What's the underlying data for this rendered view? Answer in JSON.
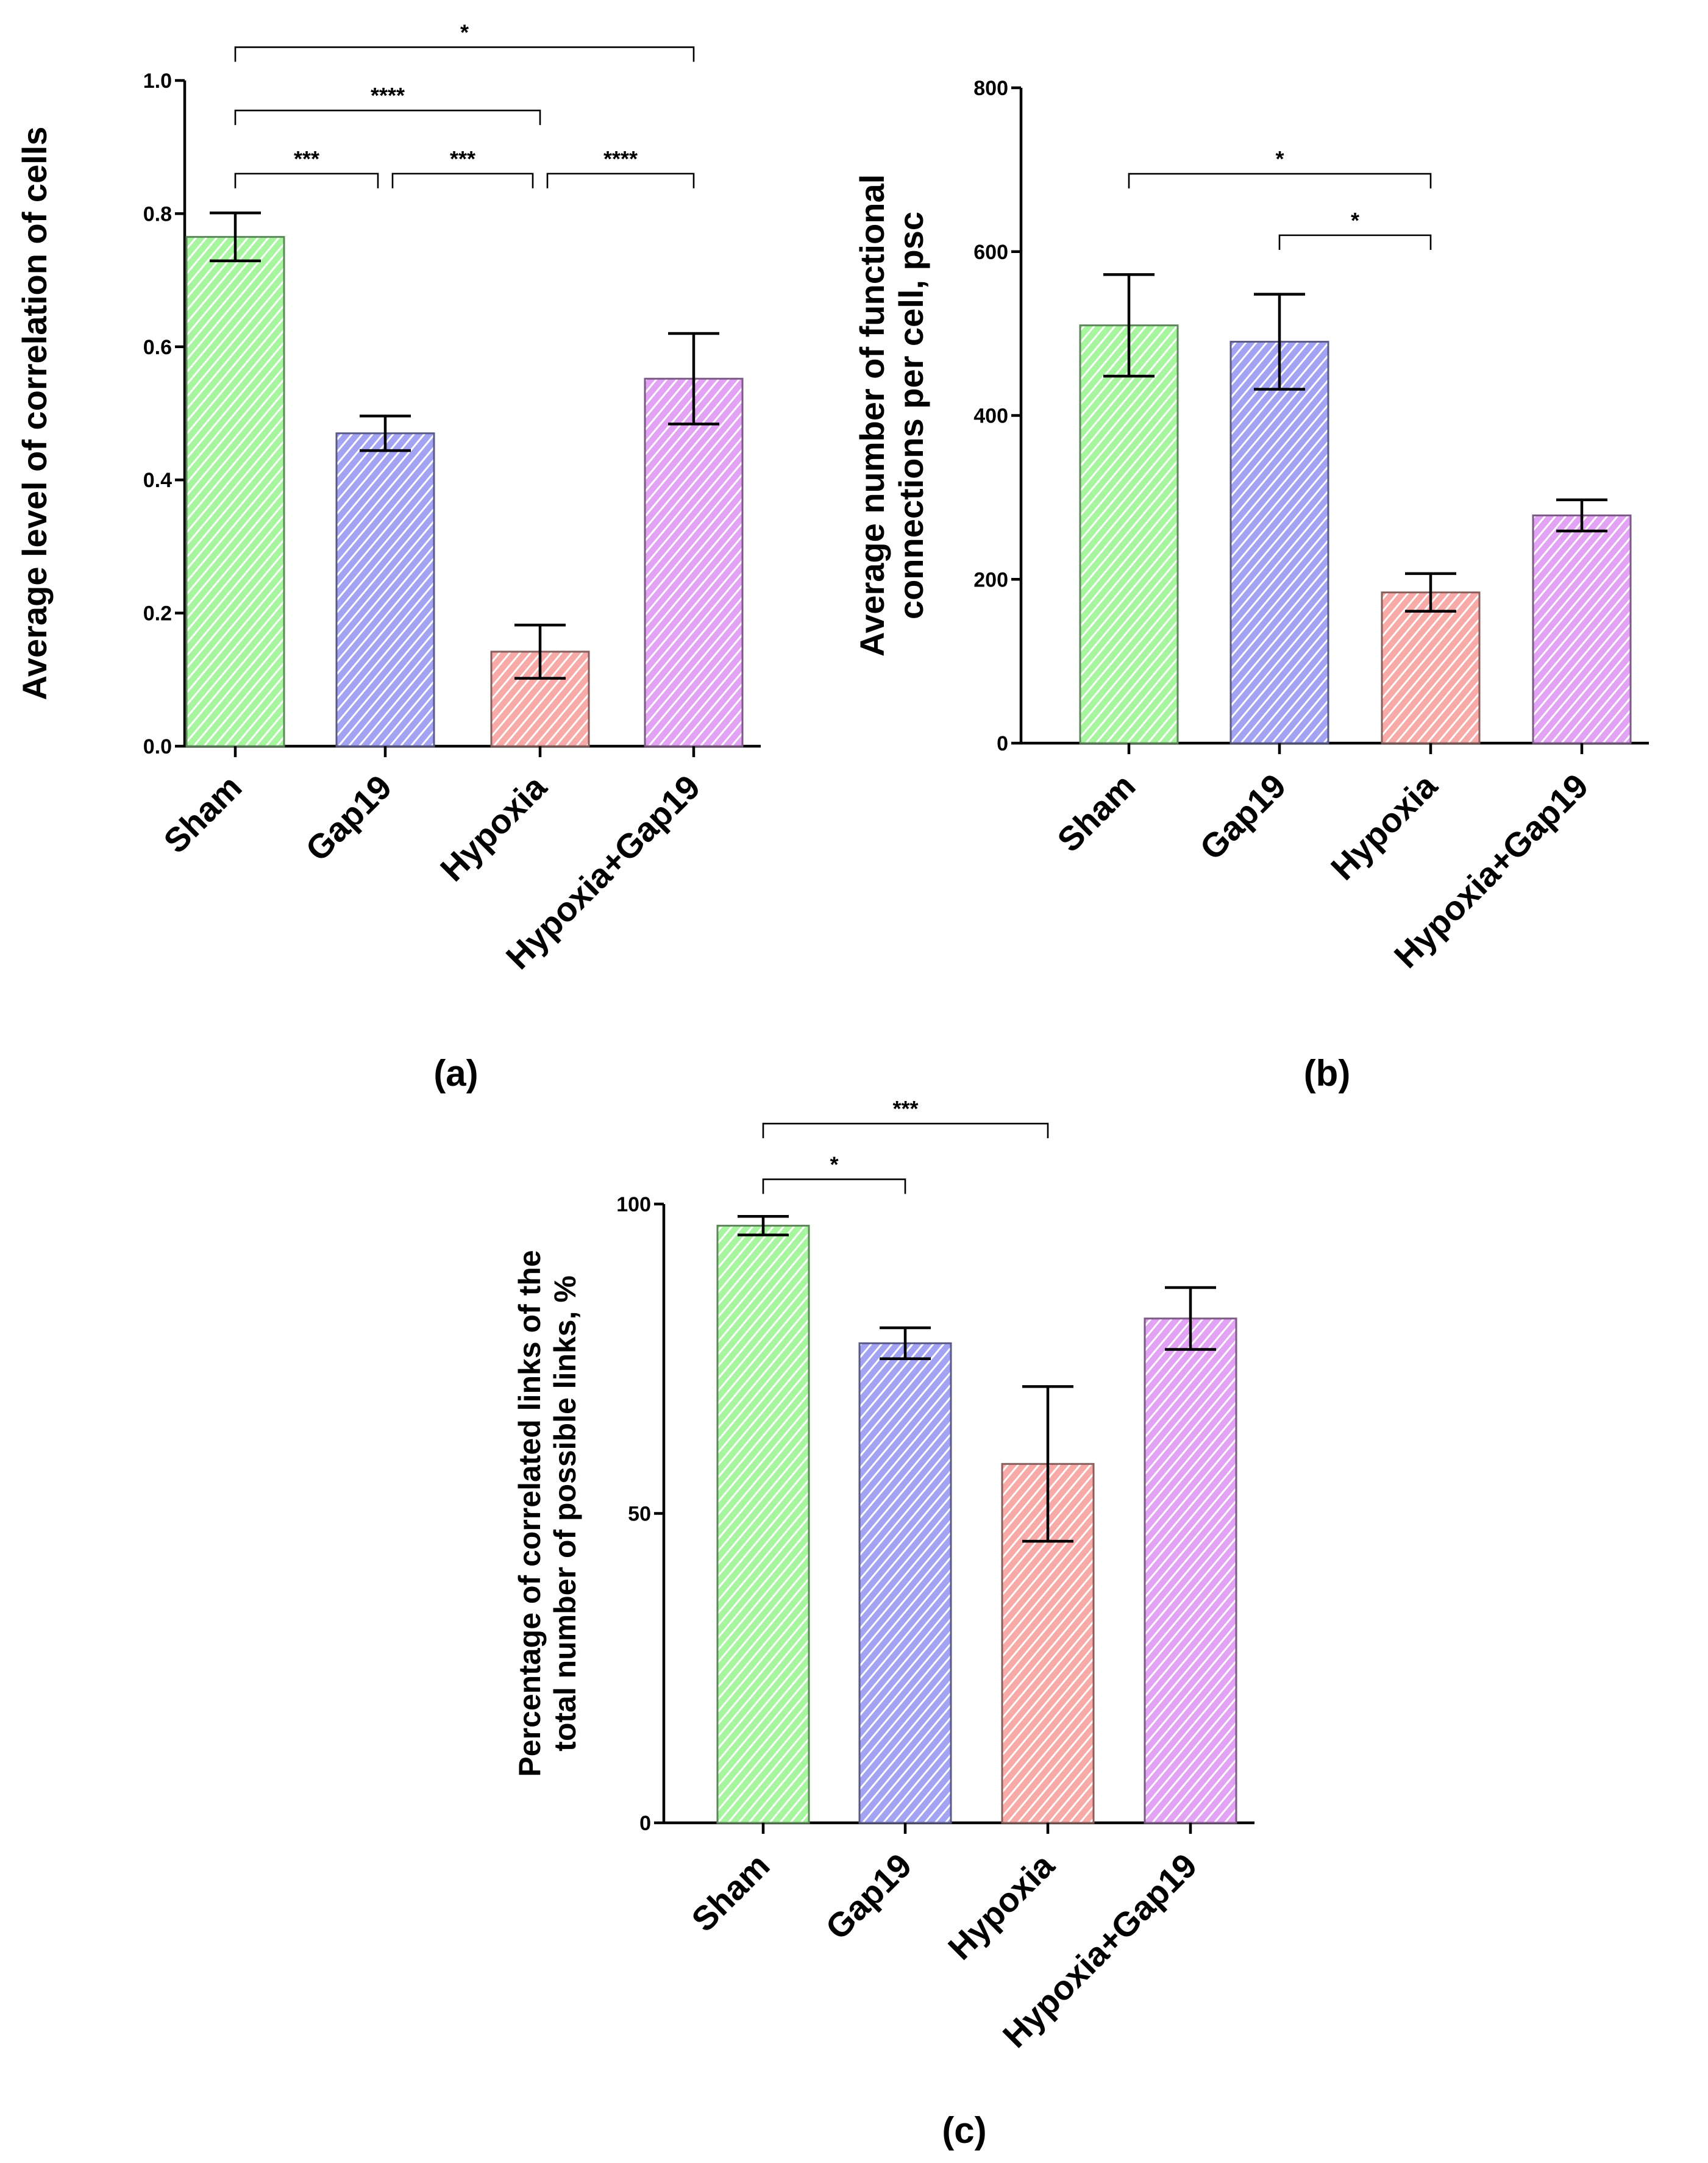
{
  "colors": {
    "Sham": "#a8f5a0",
    "Gap19": "#a3a3f4",
    "Hypoxia": "#f7aaa8",
    "Hypoxia+Gap19": "#e3a3f4"
  },
  "chart_data": [
    {
      "type": "bar",
      "panel": "(a)",
      "categories": [
        "Sham",
        "Gap19",
        "Hypoxia",
        "Hypoxia+Gap19"
      ],
      "values": [
        0.765,
        0.47,
        0.142,
        0.552
      ],
      "errors": [
        0.036,
        0.026,
        0.04,
        0.068
      ],
      "ylabel": [
        "Average level of correlation of cells"
      ],
      "ylim": [
        0,
        1.0
      ],
      "yticks": [
        0,
        0.2,
        0.4,
        0.6,
        0.8,
        1.0
      ],
      "ytick_labels": [
        "0.0",
        "0.2",
        "0.4",
        "0.6",
        "0.8",
        "1.0"
      ],
      "significance": [
        {
          "from": 0,
          "to": 1,
          "label": "***",
          "level": 0.86
        },
        {
          "from": 1,
          "to": 2,
          "label": "***",
          "level": 0.86
        },
        {
          "from": 2,
          "to": 3,
          "label": "****",
          "level": 0.86
        },
        {
          "from": 0,
          "to": 2,
          "label": "****",
          "level": 0.955
        },
        {
          "from": 0,
          "to": 3,
          "label": "*",
          "level": 1.05
        }
      ]
    },
    {
      "type": "bar",
      "panel": "(b)",
      "categories": [
        "Sham",
        "Gap19",
        "Hypoxia",
        "Hypoxia+Gap19"
      ],
      "values": [
        510,
        490,
        184,
        278
      ],
      "errors": [
        62,
        58,
        23,
        19
      ],
      "ylabel": [
        "Average number of functional",
        "connections per cell, psc"
      ],
      "ylim": [
        0,
        800
      ],
      "yticks": [
        0,
        200,
        400,
        600,
        800
      ],
      "ytick_labels": [
        "0",
        "200",
        "400",
        "600",
        "800"
      ],
      "significance": [
        {
          "from": 1,
          "to": 2,
          "label": "*",
          "level": 620
        },
        {
          "from": 0,
          "to": 2,
          "label": "*",
          "level": 695
        }
      ]
    },
    {
      "type": "bar",
      "panel": "(c)",
      "categories": [
        "Sham",
        "Gap19",
        "Hypoxia",
        "Hypoxia+Gap19"
      ],
      "values": [
        96.5,
        77.5,
        58,
        81.5
      ],
      "errors": [
        1.5,
        2.5,
        12.5,
        5
      ],
      "ylabel": [
        "Percentage of correlated links of the",
        "total number of possible links, %"
      ],
      "ylim": [
        0,
        100
      ],
      "yticks": [
        0,
        50,
        100
      ],
      "ytick_labels": [
        "0",
        "50",
        "100"
      ],
      "significance": [
        {
          "from": 0,
          "to": 1,
          "label": "*",
          "level": 104
        },
        {
          "from": 0,
          "to": 2,
          "label": "***",
          "level": 113
        }
      ]
    }
  ]
}
